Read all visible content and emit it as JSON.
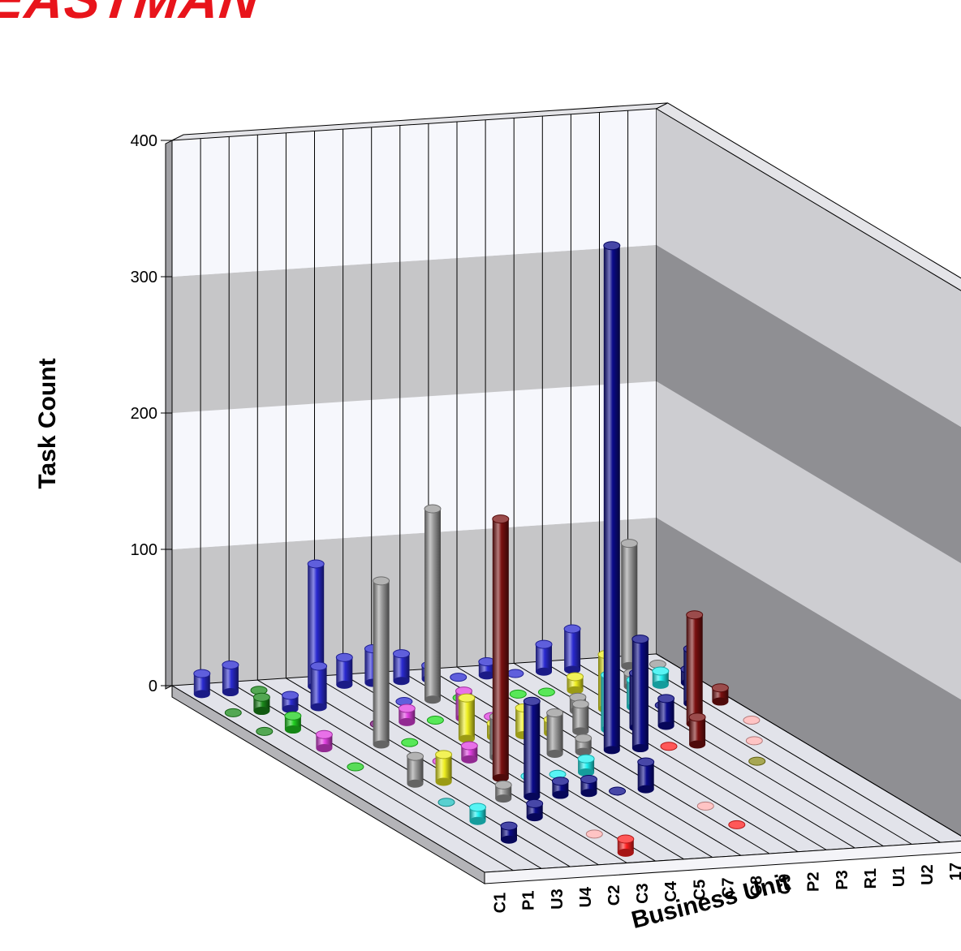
{
  "logo": {
    "text": "EASTMAN"
  },
  "chart_data": {
    "type": "bar",
    "subtype": "3d-cylinder-grid",
    "ylabel": "Task Count",
    "xlabel": "Business Unit",
    "ylim": [
      0,
      400
    ],
    "yticks": [
      "0",
      "100",
      "200",
      "300",
      "400"
    ],
    "categories": [
      "C1",
      "P1",
      "U3",
      "U4",
      "C2",
      "C3",
      "C4",
      "C5",
      "C7",
      "C8",
      "C9",
      "P2",
      "P3",
      "R1",
      "U1",
      "U2",
      "17"
    ],
    "grid": true,
    "bars": [
      {
        "cat": "C1",
        "row": 0,
        "value": 15,
        "color": "#2a2ad0"
      },
      {
        "cat": "C1",
        "row": 1,
        "value": 0,
        "color": "#1a8a1a"
      },
      {
        "cat": "C1",
        "row": 2,
        "value": 0,
        "color": "#1a8a1a"
      },
      {
        "cat": "P1",
        "row": 0,
        "value": 20,
        "color": "#2a2ad0"
      },
      {
        "cat": "P1",
        "row": 1,
        "value": 10,
        "color": "#1a8a1a"
      },
      {
        "cat": "P1",
        "row": 2,
        "value": 10,
        "color": "#20d020"
      },
      {
        "cat": "P1",
        "row": 3,
        "value": 10,
        "color": "#e040e0"
      },
      {
        "cat": "P1",
        "row": 4,
        "value": 0,
        "color": "#20d020"
      },
      {
        "cat": "U3",
        "row": 0,
        "value": 0,
        "color": "#1a8a1a"
      },
      {
        "cat": "U3",
        "row": 1,
        "value": 10,
        "color": "#2a2ad0"
      },
      {
        "cat": "U3",
        "row": 5,
        "value": 20,
        "color": "#9a9a9a"
      },
      {
        "cat": "U3",
        "row": 6,
        "value": 0,
        "color": "#20c0c0"
      },
      {
        "cat": "U3",
        "row": 7,
        "value": 10,
        "color": "#20f0f0"
      },
      {
        "cat": "U3",
        "row": 8,
        "value": 10,
        "color": "#0a0a8a"
      },
      {
        "cat": "U4",
        "row": 1,
        "value": 30,
        "color": "#2a2ad0"
      },
      {
        "cat": "U4",
        "row": 3,
        "value": 120,
        "color": "#9a9a9a"
      },
      {
        "cat": "U4",
        "row": 5,
        "value": 20,
        "color": "#eeee20"
      },
      {
        "cat": "C2",
        "row": 0,
        "value": 90,
        "color": "#2a2ad0"
      },
      {
        "cat": "C2",
        "row": 2,
        "value": 0,
        "color": "#7a107a"
      },
      {
        "cat": "C2",
        "row": 3,
        "value": 0,
        "color": "#20e020"
      },
      {
        "cat": "C2",
        "row": 4,
        "value": 0,
        "color": "#e040e0"
      },
      {
        "cat": "C2",
        "row": 6,
        "value": 10,
        "color": "#9a9a9a"
      },
      {
        "cat": "C2",
        "row": 7,
        "value": 10,
        "color": "#0a0a8a"
      },
      {
        "cat": "C3",
        "row": 0,
        "value": 20,
        "color": "#2a2ad0"
      },
      {
        "cat": "C3",
        "row": 2,
        "value": 10,
        "color": "#e040e0"
      },
      {
        "cat": "C3",
        "row": 4,
        "value": 10,
        "color": "#e040e0"
      },
      {
        "cat": "C3",
        "row": 5,
        "value": 190,
        "color": "#7a1010"
      },
      {
        "cat": "C3",
        "row": 6,
        "value": 70,
        "color": "#0a0a8a"
      },
      {
        "cat": "C3",
        "row": 8,
        "value": 0,
        "color": "#ffb0b0"
      },
      {
        "cat": "C3",
        "row": 9,
        "value": 10,
        "color": "#ff2020"
      },
      {
        "cat": "C4",
        "row": 0,
        "value": 25,
        "color": "#2a2ad0"
      },
      {
        "cat": "C4",
        "row": 1,
        "value": 0,
        "color": "#2a2ad0"
      },
      {
        "cat": "C4",
        "row": 2,
        "value": 0,
        "color": "#20e020"
      },
      {
        "cat": "C4",
        "row": 3,
        "value": 30,
        "color": "#eeee20"
      },
      {
        "cat": "C4",
        "row": 4,
        "value": 30,
        "color": "#9a9a9a"
      },
      {
        "cat": "C4",
        "row": 5,
        "value": 0,
        "color": "#20f0f0"
      },
      {
        "cat": "C4",
        "row": 6,
        "value": 10,
        "color": "#0a0a8a"
      },
      {
        "cat": "C5",
        "row": 0,
        "value": 20,
        "color": "#2a2ad0"
      },
      {
        "cat": "C5",
        "row": 1,
        "value": 140,
        "color": "#9a9a9a"
      },
      {
        "cat": "C5",
        "row": 2,
        "value": 20,
        "color": "#e040e0"
      },
      {
        "cat": "C5",
        "row": 3,
        "value": 10,
        "color": "#eeee20"
      },
      {
        "cat": "C5",
        "row": 5,
        "value": 0,
        "color": "#20f0f0"
      },
      {
        "cat": "C5",
        "row": 6,
        "value": 10,
        "color": "#0a0a8a"
      },
      {
        "cat": "C7",
        "row": 0,
        "value": 10,
        "color": "#2a2ad0"
      },
      {
        "cat": "C7",
        "row": 1,
        "value": 0,
        "color": "#20e020"
      },
      {
        "cat": "C7",
        "row": 2,
        "value": 0,
        "color": "#e040e0"
      },
      {
        "cat": "C7",
        "row": 3,
        "value": 20,
        "color": "#eeee20"
      },
      {
        "cat": "C7",
        "row": 4,
        "value": 30,
        "color": "#9a9a9a"
      },
      {
        "cat": "C7",
        "row": 5,
        "value": 10,
        "color": "#20f0f0"
      },
      {
        "cat": "C7",
        "row": 6,
        "value": 0,
        "color": "#0a0a8a"
      },
      {
        "cat": "C8",
        "row": 0,
        "value": 0,
        "color": "#2a2ad0"
      },
      {
        "cat": "C8",
        "row": 3,
        "value": 10,
        "color": "#eeee20"
      },
      {
        "cat": "C8",
        "row": 4,
        "value": 10,
        "color": "#9a9a9a"
      },
      {
        "cat": "C8",
        "row": 6,
        "value": 20,
        "color": "#0a0a8a"
      },
      {
        "cat": "C9",
        "row": 0,
        "value": 10,
        "color": "#2a2ad0"
      },
      {
        "cat": "C9",
        "row": 1,
        "value": 0,
        "color": "#20e020"
      },
      {
        "cat": "C9",
        "row": 3,
        "value": 20,
        "color": "#9a9a9a"
      },
      {
        "cat": "C9",
        "row": 4,
        "value": 370,
        "color": "#0a0a8a"
      },
      {
        "cat": "C9",
        "row": 7,
        "value": 0,
        "color": "#ffb0b0"
      },
      {
        "cat": "C9",
        "row": 8,
        "value": 0,
        "color": "#ff2020"
      },
      {
        "cat": "P2",
        "row": 0,
        "value": 0,
        "color": "#2a2ad0"
      },
      {
        "cat": "P2",
        "row": 1,
        "value": 0,
        "color": "#20e020"
      },
      {
        "cat": "P2",
        "row": 2,
        "value": 10,
        "color": "#9a9a9a"
      },
      {
        "cat": "P2",
        "row": 3,
        "value": 40,
        "color": "#20f0f0"
      },
      {
        "cat": "P2",
        "row": 4,
        "value": 80,
        "color": "#0a0a8a"
      },
      {
        "cat": "P3",
        "row": 0,
        "value": 20,
        "color": "#2a2ad0"
      },
      {
        "cat": "P3",
        "row": 1,
        "value": 10,
        "color": "#eeee20"
      },
      {
        "cat": "P3",
        "row": 2,
        "value": 40,
        "color": "#eeee20"
      },
      {
        "cat": "P3",
        "row": 3,
        "value": 40,
        "color": "#0a0a8a"
      },
      {
        "cat": "P3",
        "row": 4,
        "value": 0,
        "color": "#ff2020"
      },
      {
        "cat": "R1",
        "row": 0,
        "value": 30,
        "color": "#2a2ad0"
      },
      {
        "cat": "R1",
        "row": 2,
        "value": 20,
        "color": "#20f0f0"
      },
      {
        "cat": "R1",
        "row": 3,
        "value": 20,
        "color": "#0a0a8a"
      },
      {
        "cat": "R1",
        "row": 4,
        "value": 20,
        "color": "#7a1010"
      },
      {
        "cat": "U1",
        "row": 1,
        "value": 10,
        "color": "#9a9a9a"
      },
      {
        "cat": "U1",
        "row": 2,
        "value": 0,
        "color": "#0a0a8a"
      },
      {
        "cat": "U1",
        "row": 3,
        "value": 80,
        "color": "#7a1010"
      },
      {
        "cat": "U1",
        "row": 5,
        "value": 0,
        "color": "#8a8a1a"
      },
      {
        "cat": "U2",
        "row": 0,
        "value": 90,
        "color": "#9a9a9a"
      },
      {
        "cat": "U2",
        "row": 1,
        "value": 10,
        "color": "#20f0f0"
      },
      {
        "cat": "U2",
        "row": 2,
        "value": 40,
        "color": "#0a0a8a"
      },
      {
        "cat": "U2",
        "row": 4,
        "value": 0,
        "color": "#ffb0b0"
      },
      {
        "cat": "17",
        "row": 0,
        "value": 0,
        "color": "#9a9a9a"
      },
      {
        "cat": "17",
        "row": 1,
        "value": 10,
        "color": "#0a0a8a"
      },
      {
        "cat": "17",
        "row": 2,
        "value": 10,
        "color": "#7a1010"
      },
      {
        "cat": "17",
        "row": 3,
        "value": 0,
        "color": "#ffb0b0"
      }
    ]
  }
}
